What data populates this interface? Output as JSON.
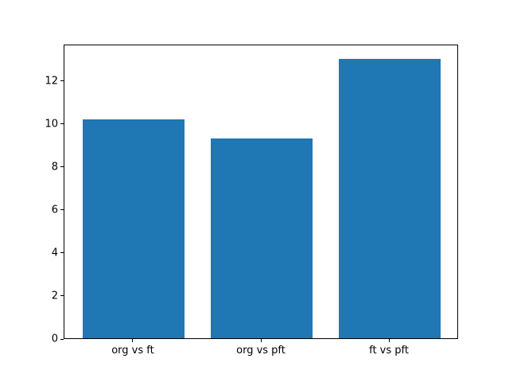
{
  "chart_data": {
    "type": "bar",
    "categories": [
      "org vs ft",
      "org vs pft",
      "ft vs pft"
    ],
    "values": [
      10.2,
      9.3,
      13.0
    ],
    "title": "",
    "xlabel": "",
    "ylabel": "",
    "ylim": [
      0,
      13.7
    ],
    "yticks": [
      "0",
      "2",
      "4",
      "6",
      "8",
      "10",
      "12"
    ],
    "ytick_values": [
      0,
      2,
      4,
      6,
      8,
      10,
      12
    ],
    "bar_width_fraction": 0.8,
    "grid": false,
    "legend": null
  },
  "colors": {
    "bar": "#1f77b4",
    "spine": "#000000",
    "text": "#000000",
    "background": "#ffffff"
  }
}
